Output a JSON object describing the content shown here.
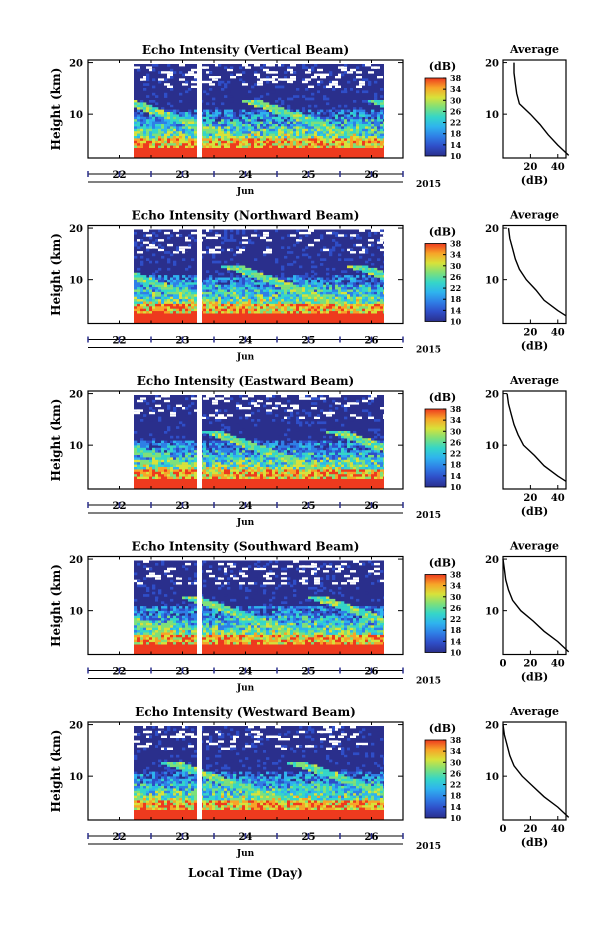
{
  "figure": {
    "x_axis_title": "Local Time (Day)"
  },
  "shared": {
    "day_ticks": [
      "22",
      "23",
      "24",
      "25",
      "26"
    ],
    "month_label": "Jun",
    "year_label": "2015",
    "height_ticks": [
      "10",
      "20"
    ],
    "ylabel": "Height (km)",
    "colorbar_unit": "(dB)",
    "colorbar_ticks": [
      "10",
      "14",
      "18",
      "22",
      "26",
      "30",
      "34",
      "38"
    ],
    "avg_title": "Average",
    "avg_xlabel": "(dB)"
  },
  "panels": [
    {
      "id": "vertical",
      "title": "Echo Intensity (Vertical Beam)",
      "avg_xticks": [
        "20",
        "40"
      ]
    },
    {
      "id": "northward",
      "title": "Echo Intensity (Northward Beam)",
      "avg_xticks": [
        "20",
        "40"
      ]
    },
    {
      "id": "eastward",
      "title": "Echo Intensity (Eastward Beam)",
      "avg_xticks": [
        "20",
        "40"
      ]
    },
    {
      "id": "southward",
      "title": "Echo Intensity (Southward Beam)",
      "avg_xticks": [
        "0",
        "20",
        "40"
      ]
    },
    {
      "id": "westward",
      "title": "Echo Intensity (Westward Beam)",
      "avg_xticks": [
        "0",
        "20",
        "40"
      ]
    }
  ],
  "colors": {
    "colormap": [
      "#2a2f8c",
      "#2f4ec8",
      "#2f7fe6",
      "#2fb3ee",
      "#35d6c8",
      "#7ee07a",
      "#d8e23a",
      "#f7a428",
      "#ee3a1e"
    ]
  },
  "chart_data": [
    {
      "type": "heatmap",
      "panel": "vertical",
      "xlim_day": [
        21.5,
        26.5
      ],
      "ylim_km": [
        1.5,
        20.5
      ],
      "clim_db": [
        10,
        38
      ],
      "data_gap_before_day": 22.85,
      "data_gap_day": [
        23.75,
        23.8
      ],
      "profile_height_km": [
        2,
        4,
        6,
        8,
        10,
        12,
        14,
        16,
        18,
        20
      ],
      "profile_db": [
        48,
        40,
        33,
        27,
        20,
        12,
        10,
        9,
        8,
        8
      ]
    },
    {
      "type": "heatmap",
      "panel": "northward",
      "xlim_day": [
        21.5,
        26.5
      ],
      "ylim_km": [
        1.5,
        20.5
      ],
      "clim_db": [
        10,
        38
      ],
      "data_gap_before_day": 22.85,
      "data_gap_day": [
        23.75,
        23.8
      ],
      "profile_height_km": [
        3,
        4,
        6,
        8,
        10,
        12,
        14,
        16,
        18,
        20
      ],
      "profile_db": [
        46,
        40,
        30,
        24,
        17,
        12,
        9,
        7,
        5,
        4
      ]
    },
    {
      "type": "heatmap",
      "panel": "eastward",
      "xlim_day": [
        21.5,
        26.5
      ],
      "ylim_km": [
        1.5,
        20.5
      ],
      "clim_db": [
        10,
        38
      ],
      "data_gap_before_day": 22.85,
      "data_gap_day": [
        23.75,
        23.8
      ],
      "profile_height_km": [
        3,
        4,
        6,
        8,
        10,
        12,
        14,
        16,
        18,
        20
      ],
      "profile_db": [
        46,
        40,
        30,
        23,
        15,
        11,
        8,
        6,
        4,
        3
      ]
    },
    {
      "type": "heatmap",
      "panel": "southward",
      "xlim_day": [
        21.5,
        26.5
      ],
      "ylim_km": [
        1.5,
        20.5
      ],
      "clim_db": [
        10,
        38
      ],
      "data_gap_before_day": 22.85,
      "data_gap_day": [
        23.75,
        23.8
      ],
      "profile_height_km": [
        2,
        4,
        6,
        8,
        10,
        12,
        14,
        16,
        18,
        20
      ],
      "profile_db": [
        48,
        40,
        30,
        22,
        13,
        7,
        4,
        2,
        1,
        0
      ]
    },
    {
      "type": "heatmap",
      "panel": "westward",
      "xlim_day": [
        21.5,
        26.5
      ],
      "ylim_km": [
        1.5,
        20.5
      ],
      "clim_db": [
        10,
        38
      ],
      "data_gap_before_day": 22.85,
      "data_gap_day": [
        23.75,
        23.8
      ],
      "profile_height_km": [
        2,
        4,
        6,
        8,
        10,
        12,
        14,
        16,
        18,
        20
      ],
      "profile_db": [
        48,
        40,
        30,
        22,
        14,
        8,
        5,
        3,
        1,
        0
      ]
    }
  ]
}
